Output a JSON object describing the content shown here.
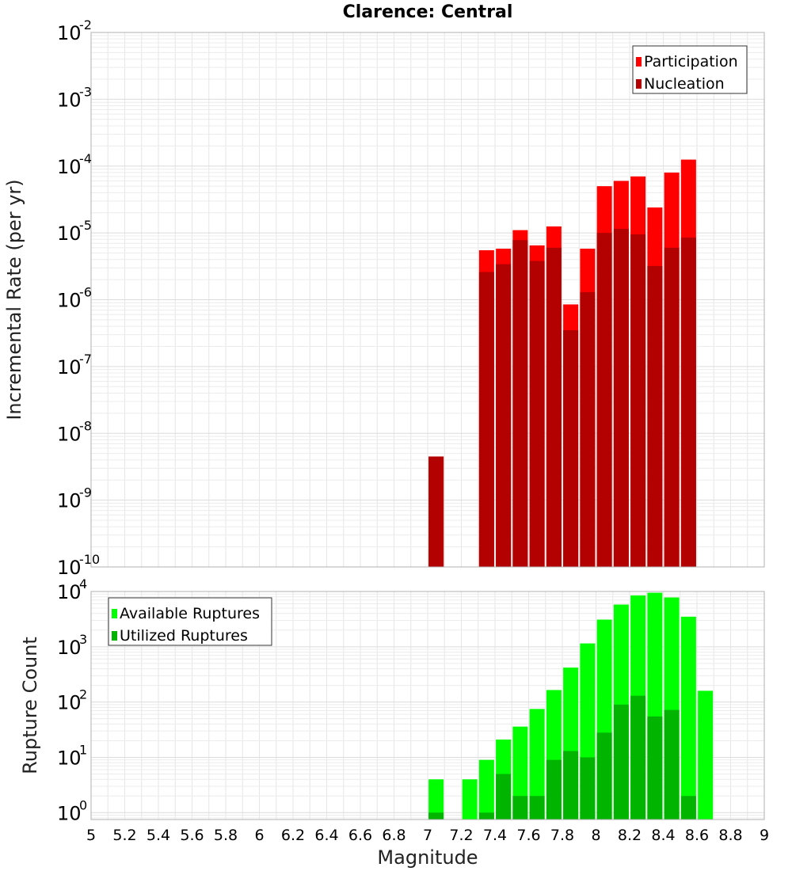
{
  "chart_data": [
    {
      "type": "bar",
      "title": "Clarence: Central",
      "xlabel": "",
      "ylabel": "Incremental Rate (per yr)",
      "yscale": "log",
      "xlim": [
        5,
        9
      ],
      "ylim": [
        1e-10,
        0.01
      ],
      "grid": true,
      "legend_position": "top-right",
      "x": [
        7.05,
        7.35,
        7.45,
        7.55,
        7.65,
        7.75,
        7.85,
        7.95,
        8.05,
        8.15,
        8.25,
        8.35,
        8.45,
        8.55
      ],
      "series": [
        {
          "name": "Participation",
          "color": "#ff0000",
          "values": [
            4.5e-09,
            5.5e-06,
            5.8e-06,
            1.1e-05,
            6.5e-06,
            1.25e-05,
            8.5e-07,
            5.8e-06,
            5e-05,
            6e-05,
            7e-05,
            2.4e-05,
            8e-05,
            0.000125
          ]
        },
        {
          "name": "Nucleation",
          "color": "#b30000",
          "values": [
            4.5e-09,
            2.6e-06,
            3.4e-06,
            7.8e-06,
            3.8e-06,
            6e-06,
            3.5e-07,
            1.3e-06,
            1e-05,
            1.15e-05,
            9.5e-06,
            3.2e-06,
            6e-06,
            8.5e-06
          ]
        }
      ]
    },
    {
      "type": "bar",
      "title": "",
      "xlabel": "Magnitude",
      "ylabel": "Rupture Count",
      "yscale": "log",
      "xlim": [
        5,
        9
      ],
      "ylim": [
        0.75,
        10000.0
      ],
      "grid": true,
      "legend_position": "top-left",
      "x_tick_labels": [
        "5",
        "5.2",
        "5.4",
        "5.6",
        "5.8",
        "6",
        "6.2",
        "6.4",
        "6.6",
        "6.8",
        "7",
        "7.2",
        "7.4",
        "7.6",
        "7.8",
        "8",
        "8.2",
        "8.4",
        "8.6",
        "8.8",
        "9"
      ],
      "x": [
        7.05,
        7.25,
        7.35,
        7.45,
        7.55,
        7.65,
        7.75,
        7.85,
        7.95,
        8.05,
        8.15,
        8.25,
        8.35,
        8.45,
        8.55,
        8.65
      ],
      "series": [
        {
          "name": "Available Ruptures",
          "color": "#00ff00",
          "values": [
            4,
            4,
            9,
            21,
            36,
            75,
            165,
            420,
            1150,
            3100,
            5800,
            8500,
            9500,
            7800,
            3500,
            160
          ]
        },
        {
          "name": "Utilized Ruptures",
          "color": "#00b400",
          "values": [
            1,
            0,
            1,
            5,
            2,
            2,
            9,
            13,
            10,
            28,
            90,
            130,
            55,
            72,
            2,
            0
          ]
        }
      ]
    }
  ]
}
